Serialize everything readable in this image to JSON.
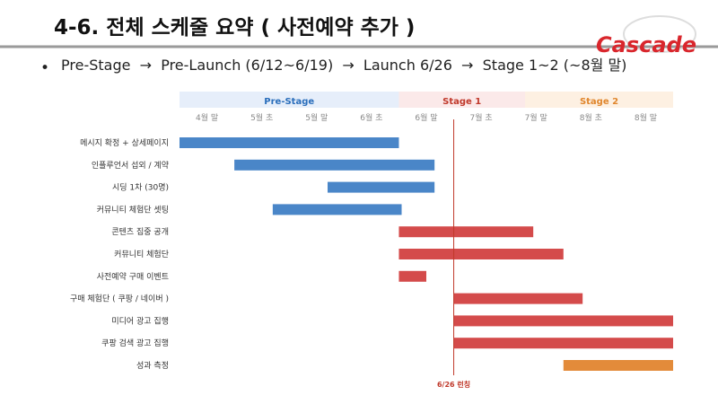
{
  "header": {
    "title": "4-6.  전체 스케줄 요약  ( 사전예약 추가 )",
    "logo": "Cascade"
  },
  "bullet": "Pre-Stage  →  Pre-Launch (6/12~6/19)  →  Launch 6/26  →  Stage 1~2 (~8월 말)",
  "gantt": {
    "phases": [
      {
        "name": "Pre-Stage",
        "start": 0,
        "end": 4,
        "color": "#2a6ebb",
        "bg": "#e6eefa"
      },
      {
        "name": "Stage 1",
        "start": 4,
        "end": 6.3,
        "color": "#c0392b",
        "bg": "#fbe9e9"
      },
      {
        "name": "Stage 2",
        "start": 6.3,
        "end": 9,
        "color": "#e0862d",
        "bg": "#fdf0e2"
      }
    ],
    "columns": [
      "4월 말",
      "5월 초",
      "5월 말",
      "6월 초",
      "6월 말",
      "7월 초",
      "7월 말",
      "8월 초",
      "8월 말"
    ],
    "tasks": [
      {
        "name": "메시지 확정 + 상세페이지",
        "start": 0,
        "end": 4,
        "color": "#4a86c8"
      },
      {
        "name": "인플루언서 섭외 / 계약",
        "start": 1,
        "end": 4.65,
        "color": "#4a86c8"
      },
      {
        "name": "시딩 1차 (30명)",
        "start": 2.7,
        "end": 4.65,
        "color": "#4a86c8"
      },
      {
        "name": "커뮤니티 체험단 셋팅",
        "start": 1.7,
        "end": 4.05,
        "color": "#4a86c8"
      },
      {
        "name": "콘텐츠 집중 공개",
        "start": 4,
        "end": 6.45,
        "color": "#d44b4b"
      },
      {
        "name": "커뮤니티 체험단",
        "start": 4,
        "end": 7,
        "color": "#d44b4b"
      },
      {
        "name": "사전예약 구매 이벤트",
        "start": 4,
        "end": 4.5,
        "color": "#d44b4b"
      },
      {
        "name": "구매 체험단 ( 쿠팡 / 네이버 )",
        "start": 5,
        "end": 7.35,
        "color": "#d44b4b"
      },
      {
        "name": "미디어 광고 집행",
        "start": 5,
        "end": 9,
        "color": "#d44b4b"
      },
      {
        "name": "쿠팡 검색 광고 집행",
        "start": 5,
        "end": 9,
        "color": "#d44b4b"
      },
      {
        "name": "성과 측정",
        "start": 7,
        "end": 9,
        "color": "#e38b3a"
      }
    ],
    "milestone": {
      "label": "6/26 런칭",
      "at": 5,
      "color": "#c0392b"
    }
  }
}
